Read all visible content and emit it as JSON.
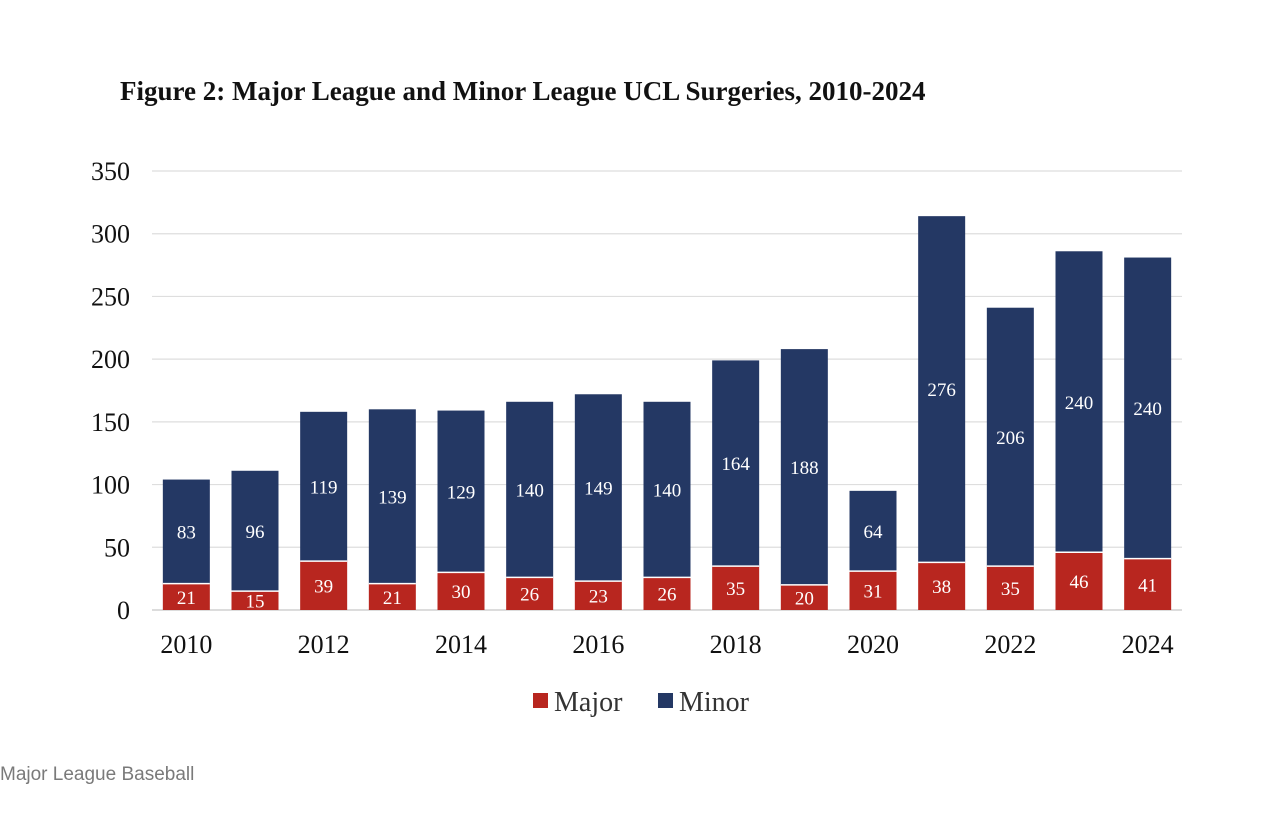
{
  "chart_data": {
    "type": "bar",
    "stacked": true,
    "title": "Figure 2: Major League and Minor League UCL Surgeries, 2010-2024",
    "xlabel": "",
    "ylabel": "",
    "ylim": [
      0,
      350
    ],
    "yticks": [
      "0",
      "50",
      "100",
      "150",
      "200",
      "250",
      "300",
      "350"
    ],
    "categories": [
      "2010",
      "2011",
      "2012",
      "2013",
      "2014",
      "2015",
      "2016",
      "2017",
      "2018",
      "2019",
      "2020",
      "2021",
      "2022",
      "2023",
      "2024"
    ],
    "xtick_labels": [
      "2010",
      "",
      "2012",
      "",
      "2014",
      "",
      "2016",
      "",
      "2018",
      "",
      "2020",
      "",
      "2022",
      "",
      "2024"
    ],
    "grid": true,
    "legend_position": "bottom",
    "series": [
      {
        "name": "Major",
        "color": "#B8261F",
        "values": [
          21,
          15,
          39,
          21,
          30,
          26,
          23,
          26,
          35,
          20,
          31,
          38,
          35,
          46,
          41
        ]
      },
      {
        "name": "Minor",
        "color": "#243864",
        "values": [
          83,
          96,
          119,
          139,
          129,
          140,
          149,
          140,
          164,
          188,
          64,
          276,
          206,
          240,
          240
        ]
      }
    ]
  },
  "caption": "Major League Baseball"
}
